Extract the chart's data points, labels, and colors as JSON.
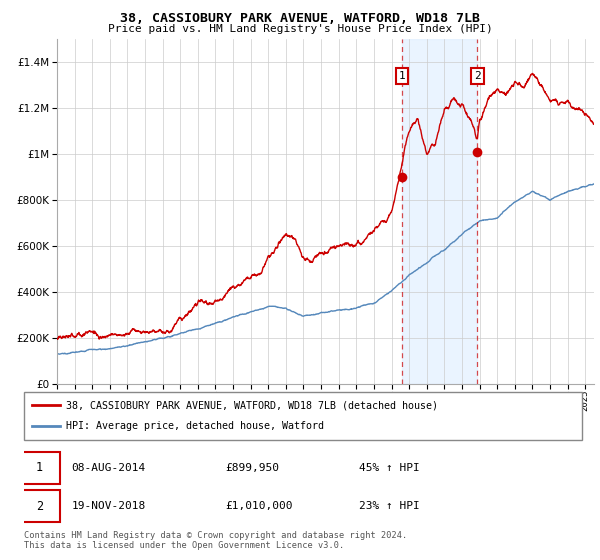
{
  "title": "38, CASSIOBURY PARK AVENUE, WATFORD, WD18 7LB",
  "subtitle": "Price paid vs. HM Land Registry's House Price Index (HPI)",
  "legend_line1": "38, CASSIOBURY PARK AVENUE, WATFORD, WD18 7LB (detached house)",
  "legend_line2": "HPI: Average price, detached house, Watford",
  "annotation1_label": "1",
  "annotation1_date": "08-AUG-2014",
  "annotation1_price": "£899,950",
  "annotation1_hpi": "45% ↑ HPI",
  "annotation1_year": 2014.6,
  "annotation1_value": 899950,
  "annotation2_label": "2",
  "annotation2_date": "19-NOV-2018",
  "annotation2_price": "£1,010,000",
  "annotation2_hpi": "23% ↑ HPI",
  "annotation2_year": 2018.88,
  "annotation2_value": 1010000,
  "footer": "Contains HM Land Registry data © Crown copyright and database right 2024.\nThis data is licensed under the Open Government Licence v3.0.",
  "red_color": "#cc0000",
  "blue_color": "#5588bb",
  "shade_color": "#ddeeff",
  "annotation_box_color": "#cc0000",
  "background_color": "#ffffff",
  "grid_color": "#cccccc",
  "ylim": [
    0,
    1500000
  ],
  "xlim_start": 1995.0,
  "xlim_end": 2025.5
}
